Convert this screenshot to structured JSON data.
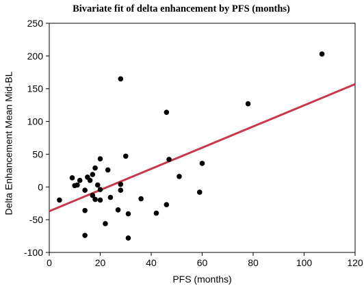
{
  "chart_data": {
    "type": "scatter",
    "title": "Bivariate fit of delta enhancement by PFS (months)",
    "xlabel": "PFS (months)",
    "ylabel": "Delta Enhancement Mean Mid-BL",
    "xlim": [
      0,
      120
    ],
    "ylim": [
      -100,
      250
    ],
    "xticks": [
      0,
      20,
      40,
      60,
      80,
      100,
      120
    ],
    "yticks": [
      -100,
      -50,
      0,
      50,
      100,
      150,
      200,
      250
    ],
    "grid": false,
    "colors": {
      "points": "#000000",
      "fit_line": "#c8374a",
      "axis": "#000000"
    },
    "series": [
      {
        "type": "scatter",
        "x": [
          4,
          9,
          10,
          11,
          12,
          14,
          14,
          14,
          15,
          16,
          17,
          17,
          18,
          18,
          19,
          20,
          20,
          20,
          22,
          23,
          24,
          27,
          28,
          28,
          28,
          30,
          31,
          31,
          36,
          42,
          46,
          46,
          47,
          51,
          59,
          60,
          78,
          107
        ],
        "y": [
          -20,
          14,
          2,
          3,
          10,
          -74,
          -36,
          -5,
          15,
          10,
          -13,
          19,
          29,
          -19,
          3,
          43,
          -4,
          -20,
          -56,
          26,
          -16,
          -35,
          165,
          4,
          -5,
          47,
          -41,
          -78,
          -18,
          -40,
          114,
          -27,
          42,
          16,
          -8,
          36,
          127,
          203
        ]
      },
      {
        "type": "line",
        "x": [
          0,
          120
        ],
        "y": [
          -37,
          157
        ]
      }
    ]
  }
}
